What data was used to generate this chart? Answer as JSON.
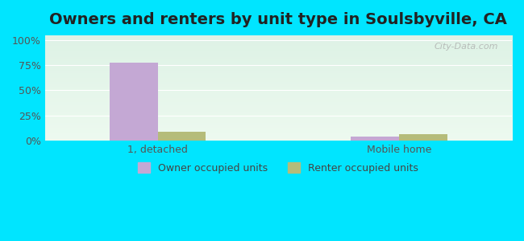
{
  "title": "Owners and renters by unit type in Soulsbyville, CA",
  "categories": [
    "1, detached",
    "Mobile home"
  ],
  "owner_values": [
    78,
    4
  ],
  "renter_values": [
    9,
    6
  ],
  "owner_color": "#c4a8d4",
  "renter_color": "#b5bc7a",
  "outer_bg": "#00e5ff",
  "yticks": [
    0,
    25,
    50,
    75,
    100
  ],
  "ylim": [
    0,
    105
  ],
  "title_fontsize": 14,
  "legend_labels": [
    "Owner occupied units",
    "Renter occupied units"
  ],
  "watermark": "City-Data.com",
  "bar_width": 0.3,
  "group_positions": [
    1.0,
    2.5
  ]
}
